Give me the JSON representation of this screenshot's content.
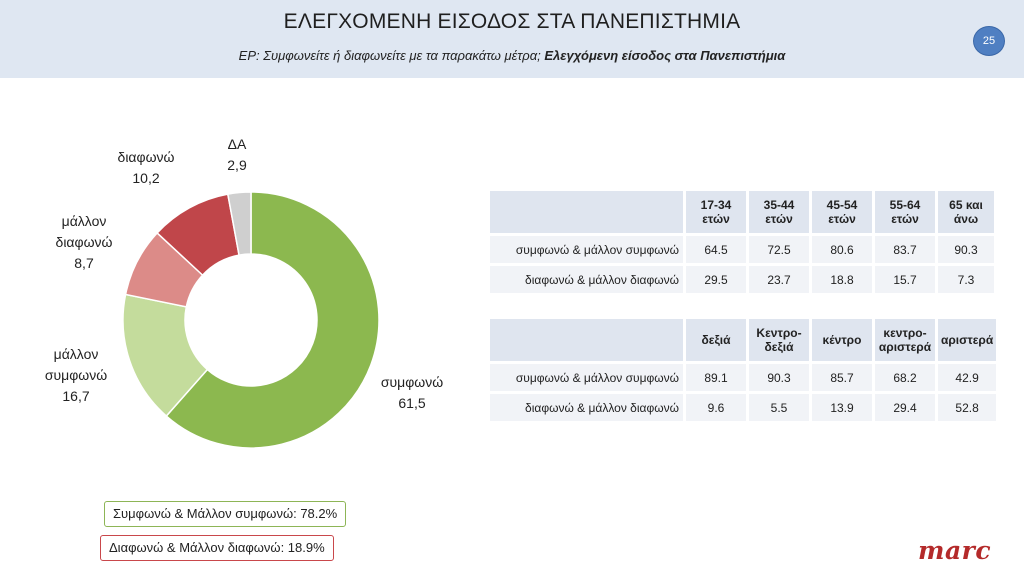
{
  "header": {
    "title": "ΕΛΕΓΧΟΜΕΝΗ ΕΙΣΟΔΟΣ ΣΤΑ ΠΑΝΕΠΙΣΤΗΜΙΑ",
    "subtitle_prefix": "ΕΡ: Συμφωνείτε ή διαφωνείτε με τα παρακάτω μέτρα;",
    "subtitle_topic": "Ελεγχόμενη είσοδος στα Πανεπιστήμια",
    "page_number": "25"
  },
  "chart_data": [
    {
      "type": "pie",
      "variant": "donut",
      "slices": [
        {
          "label": "συμφωνώ",
          "value": 61.5,
          "display": "61,5",
          "color": "#8cb84f"
        },
        {
          "label": "μάλλον συμφωνώ",
          "value": 16.7,
          "display": "16,7",
          "color": "#c4dc9c"
        },
        {
          "label": "μάλλον διαφωνώ",
          "value": 8.7,
          "display": "8,7",
          "color": "#dc8b88"
        },
        {
          "label": "διαφωνώ",
          "value": 10.2,
          "display": "10,2",
          "color": "#c0464a"
        },
        {
          "label": "ΔΑ",
          "value": 2.9,
          "display": "2,9",
          "color": "#cfcfcf"
        }
      ]
    },
    {
      "type": "table",
      "columns": [
        "17-34 ετών",
        "35-44 ετών",
        "45-54 ετών",
        "55-64 ετών",
        "65 και άνω"
      ],
      "rows": [
        {
          "label": "συμφωνώ & μάλλον συμφωνώ",
          "values": [
            "64.5",
            "72.5",
            "80.6",
            "83.7",
            "90.3"
          ]
        },
        {
          "label": "διαφωνώ & μάλλον διαφωνώ",
          "values": [
            "29.5",
            "23.7",
            "18.8",
            "15.7",
            "7.3"
          ]
        }
      ]
    },
    {
      "type": "table",
      "columns": [
        "δεξιά",
        "Κεντρο-δεξιά",
        "κέντρο",
        "κεντρο-αριστερά",
        "αριστερά"
      ],
      "rows": [
        {
          "label": "συμφωνώ & μάλλον συμφωνώ",
          "values": [
            "89.1",
            "90.3",
            "85.7",
            "68.2",
            "42.9"
          ]
        },
        {
          "label": "διαφωνώ & μάλλον διαφωνώ",
          "values": [
            "9.6",
            "5.5",
            "13.9",
            "29.4",
            "52.8"
          ]
        }
      ]
    }
  ],
  "summary": {
    "agree": "Συμφωνώ & Μάλλον συμφωνώ: 78.2%",
    "disagree": "Διαφωνώ & Μάλλον διαφωνώ: 18.9%"
  },
  "logo": {
    "text": "marc"
  }
}
